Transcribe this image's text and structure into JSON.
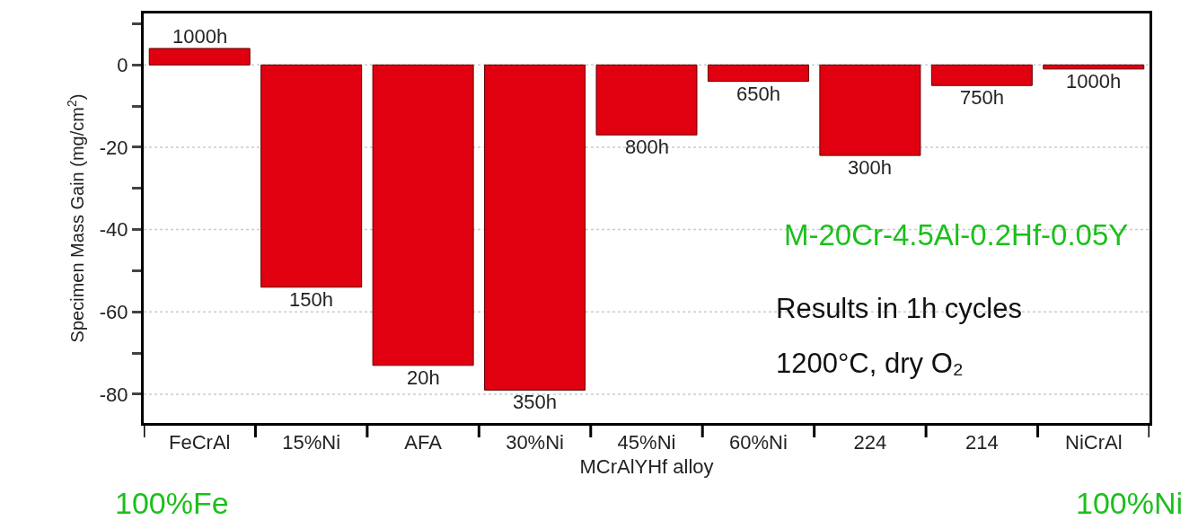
{
  "chart_data": {
    "type": "bar",
    "categories": [
      "FeCrAl",
      "15%Ni",
      "AFA",
      "30%Ni",
      "45%Ni",
      "60%Ni",
      "224",
      "214",
      "NiCrAl"
    ],
    "values": [
      4,
      -54,
      -73,
      -79,
      -17,
      -4,
      -22,
      -5,
      -1
    ],
    "color": "#e00010",
    "xlabel": "MCrAlYHf alloy",
    "ylabel": "Specimen Mass Gain (mg/cm$^{2}$)",
    "ylim": [
      -87,
      12.5
    ],
    "yticks": [
      {
        "value": 10,
        "label": null
      },
      0,
      {
        "value": -10,
        "label": null
      },
      -20,
      {
        "value": -30,
        "label": null
      },
      -40,
      {
        "value": -50,
        "label": null
      },
      -60,
      {
        "value": -70,
        "label": null
      },
      -80
    ],
    "grid": "y",
    "annotations": [
      "M-20Cr-4.5Al-0.2Hf-0.05Y",
      "Results in 1h cycles",
      "1200°C, dry O₂",
      "100%Fe",
      "100%Ni",
      {
        "text": "1000h",
        "x": "FeCrAl",
        "y": 4
      },
      {
        "text": "150h",
        "x": "15%Ni",
        "y": -54
      },
      {
        "text": "20h",
        "x": "AFA",
        "y": -73
      },
      {
        "text": "350h",
        "x": "30%Ni",
        "y": -79
      },
      {
        "text": "800h",
        "x": "45%Ni",
        "y": -17
      },
      {
        "text": "650h",
        "x": "60%Ni",
        "y": -4
      },
      {
        "text": "300h",
        "x": "224",
        "y": -22
      },
      {
        "text": "750h",
        "x": "214",
        "y": -5
      },
      {
        "text": "1000h",
        "x": "NiCrAl",
        "y": -1
      }
    ]
  }
}
